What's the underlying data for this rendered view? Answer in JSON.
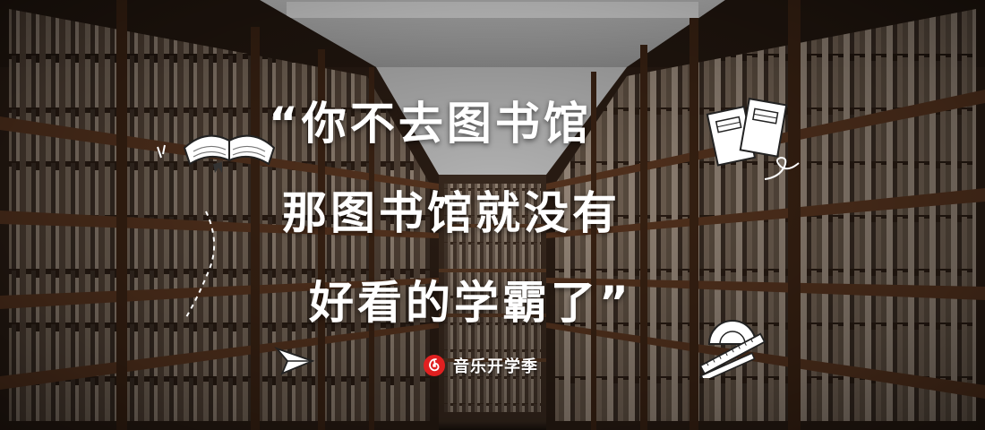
{
  "banner": {
    "headline": {
      "line1": "“你不去图书馆",
      "line2": "那图书馆就没有",
      "line3": "好看的学霸了”"
    },
    "brand": {
      "text": "音乐开学季",
      "logo_icon": "netease-cloud-music-logo-icon",
      "logo_color": "#e02020"
    }
  },
  "colors": {
    "text": "#ffffff",
    "shelf_wood": "#4a2a18",
    "ceiling": "#d8d8d8"
  }
}
